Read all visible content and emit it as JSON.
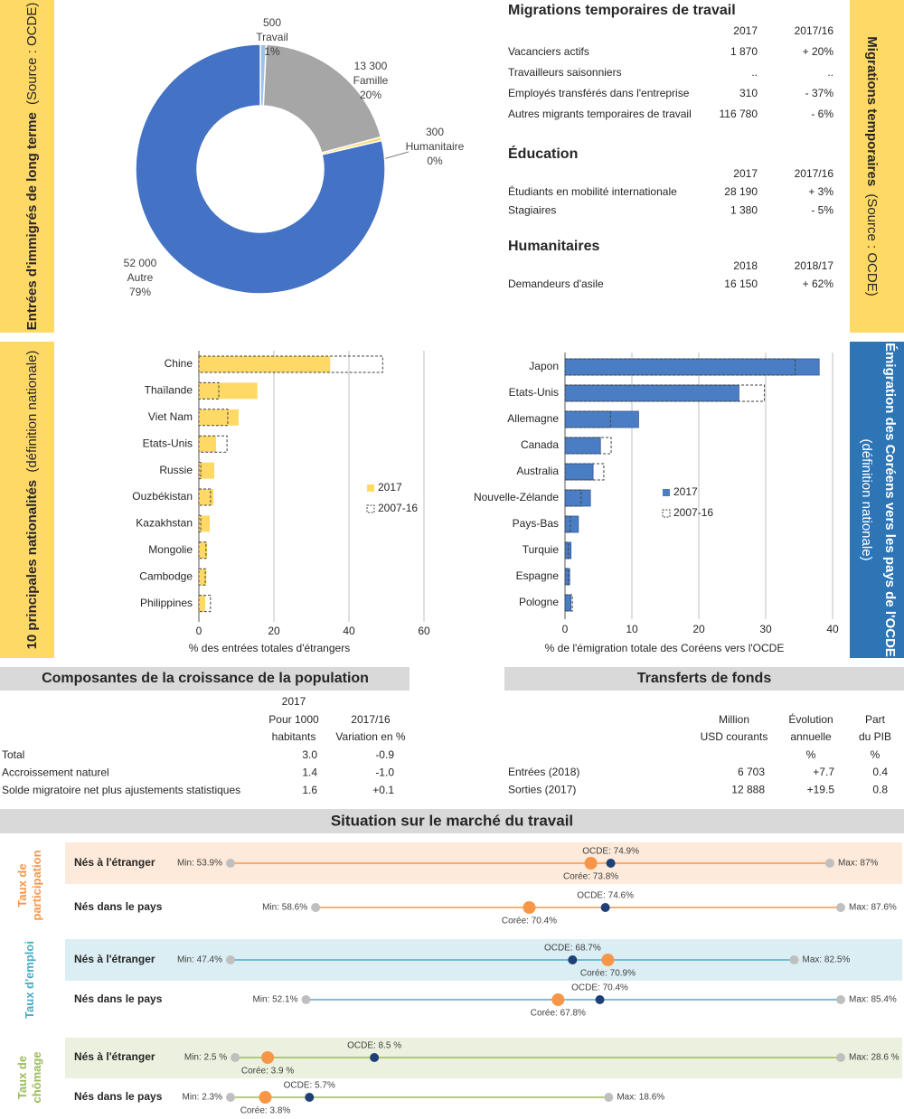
{
  "panels": {
    "long_term": {
      "title": "Entrées d'immigrés de long terme",
      "source": "(Source : OCDE)"
    },
    "temporary": {
      "title": "Migrations temporaires",
      "source": "(Source : OCDE)"
    },
    "nationalities": {
      "title": "10 principales nationalités",
      "note": "(définition nationale)"
    },
    "emigration": {
      "title": "Émigration des Coréens vers les pays de l'OCDE",
      "note": "(définition nationale)"
    }
  },
  "temporary": {
    "sections": [
      {
        "title": "Migrations temporaires de travail",
        "columns": [
          "2017",
          "2017/16"
        ],
        "rows": [
          [
            "Vacanciers actifs",
            "1 870",
            "+ 20%"
          ],
          [
            "Travailleurs saisonniers",
            "..",
            ".."
          ],
          [
            "Employés transférés dans l'entreprise",
            "310",
            "- 37%"
          ],
          [
            "Autres migrants temporaires de travail",
            "116 780",
            "- 6%"
          ]
        ]
      },
      {
        "title": "Éducation",
        "columns": [
          "2017",
          "2017/16"
        ],
        "rows": [
          [
            "Étudiants en mobilité internationale",
            "28 190",
            "+ 3%"
          ],
          [
            "Stagiaires",
            "1 380",
            "- 5%"
          ]
        ]
      },
      {
        "title": "Humanitaires",
        "columns": [
          "2018",
          "2018/17"
        ],
        "rows": [
          [
            "Demandeurs d'asile",
            "16 150",
            "+ 62%"
          ]
        ]
      }
    ]
  },
  "population": {
    "title": "Composantes de la croissance de la population",
    "columns": [
      [
        "2017",
        "Pour 1000",
        "habitants"
      ],
      [
        "2017/16",
        "Variation en %"
      ]
    ],
    "rows": [
      [
        "Total",
        "3.0",
        "-0.9"
      ],
      [
        "Accroissement naturel",
        "1.4",
        "-1.0"
      ],
      [
        "Solde migratoire net plus ajustements statistiques",
        "1.6",
        "+0.1"
      ]
    ]
  },
  "remittances": {
    "title": "Transferts de fonds",
    "columns": [
      [
        "Million",
        "USD courants"
      ],
      [
        "Évolution",
        "annuelle",
        "%"
      ],
      [
        "Part",
        "du PIB",
        "%"
      ]
    ],
    "rows": [
      [
        "Entrées (2018)",
        "6 703",
        "+7.7",
        "0.4"
      ],
      [
        "Sorties (2017)",
        "12 888",
        "+19.5",
        "0.8"
      ]
    ]
  },
  "chart_data": [
    {
      "type": "pie",
      "donut": true,
      "categories": [
        "Travail",
        "Famille",
        "Humanitaire",
        "Autre"
      ],
      "values": [
        500,
        13300,
        300,
        52000
      ],
      "value_labels": [
        "500",
        "13 300",
        "300",
        "52 000"
      ],
      "shares": [
        1,
        20,
        0,
        79
      ],
      "share_labels": [
        "1%",
        "20%",
        "0%",
        "79%"
      ],
      "colors": [
        "#9dc3e6",
        "#a6a6a6",
        "#ffd966",
        "#4472c4"
      ]
    },
    {
      "type": "hbar",
      "categories": [
        "Chine",
        "Thaïlande",
        "Viet Nam",
        "Etats-Unis",
        "Russie",
        "Ouzbékistan",
        "Kazakhstan",
        "Mongolie",
        "Cambodge",
        "Philippines"
      ],
      "series": [
        {
          "name": "2017",
          "color": "#ffd966",
          "values": [
            35,
            15.6,
            10.6,
            4.6,
            4.1,
            3.9,
            2.9,
            2.2,
            2,
            1.7
          ]
        },
        {
          "name": "2007-16",
          "color": "#404040",
          "style": "dashed",
          "values": [
            49,
            5.3,
            7.7,
            7.5,
            0.5,
            3.1,
            0.5,
            1.9,
            1.7,
            3.1
          ]
        }
      ],
      "xlim": [
        0,
        60
      ],
      "xticks": [
        0,
        20,
        40,
        60
      ],
      "grid": true,
      "xlabel": "% des entrées totales d'étrangers"
    },
    {
      "type": "hbar",
      "categories": [
        "Japon",
        "Etats-Unis",
        "Allemagne",
        "Canada",
        "Australia",
        "Nouvelle-Zélande",
        "Pays-Bas",
        "Turquie",
        "Espagne",
        "Pologne"
      ],
      "series": [
        {
          "name": "2017",
          "color": "#4a7ec4",
          "values": [
            38,
            26,
            11,
            5.3,
            4.2,
            3.8,
            2,
            0.9,
            0.7,
            0.9
          ]
        },
        {
          "name": "2007-16",
          "color": "#404040",
          "style": "dashed",
          "values": [
            34.4,
            29.8,
            6.8,
            6.9,
            5.8,
            2.4,
            0.8,
            0.5,
            0.5,
            1.1
          ]
        }
      ],
      "xlim": [
        0,
        40
      ],
      "xticks": [
        0,
        10,
        20,
        30,
        40
      ],
      "grid": true,
      "xlabel": "% de l'émigration totale des Coréens vers l'OCDE"
    },
    {
      "type": "dot",
      "title": "Situation sur le marché du travail",
      "groups": [
        {
          "name": [
            "Taux de",
            "participation"
          ],
          "color": "#f79646",
          "background": "#fdeada",
          "rows": [
            {
              "name": "Nés à l'étranger",
              "min": 53.9,
              "min_label": "Min: 53.9%",
              "max": 87,
              "max_label": "Max: 87%",
              "oecd": 74.9,
              "oecd_label": "OCDE: 74.9%",
              "korea": 73.8,
              "korea_label": "Corée: 73.8%"
            },
            {
              "name": "Nés dans le pays",
              "min": 58.6,
              "min_label": "Min: 58.6%",
              "max": 87.6,
              "max_label": "Max: 87.6%",
              "oecd": 74.6,
              "oecd_label": "OCDE: 74.6%",
              "korea": 70.4,
              "korea_label": "Corée: 70.4%"
            }
          ]
        },
        {
          "name": [
            "Taux d'emploi"
          ],
          "color": "#4bacc6",
          "background": "#dbeef4",
          "rows": [
            {
              "name": "Nés à l'étranger",
              "min": 47.4,
              "min_label": "Min: 47.4%",
              "max": 82.5,
              "max_label": "Max: 82.5%",
              "oecd": 68.7,
              "oecd_label": "OCDE: 68.7%",
              "korea": 70.9,
              "korea_label": "Corée: 70.9%"
            },
            {
              "name": "Nés dans le pays",
              "min": 52.1,
              "min_label": "Min: 52.1%",
              "max": 85.4,
              "max_label": "Max: 85.4%",
              "oecd": 70.4,
              "oecd_label": "OCDE: 70.4%",
              "korea": 67.8,
              "korea_label": "Corée: 67.8%"
            }
          ]
        },
        {
          "name": [
            "Taux de",
            "chômage"
          ],
          "color": "#9bbb59",
          "background": "#ebf1de",
          "rows": [
            {
              "name": "Nés à l'étranger",
              "min": 2.5,
              "min_label": "Min: 2.5 %",
              "max": 28.6,
              "max_label": "Max: 28.6 %",
              "oecd": 8.5,
              "oecd_label": "OCDE: 8.5 %",
              "korea": 3.9,
              "korea_label": "Corée: 3.9 %"
            },
            {
              "name": "Nés dans le pays",
              "min": 2.3,
              "min_label": "Min: 2.3%",
              "max": 18.6,
              "max_label": "Max: 18.6%",
              "oecd": 5.7,
              "oecd_label": "OCDE: 5.7%",
              "korea": 3.8,
              "korea_label": "Corée: 3.8%"
            }
          ]
        }
      ]
    }
  ]
}
